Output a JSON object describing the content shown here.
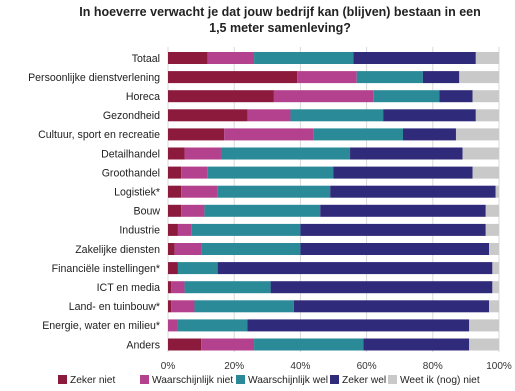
{
  "chart_data": {
    "type": "bar",
    "orientation": "horizontal",
    "stacked": true,
    "title_lines": [
      "In hoeverre verwacht je dat jouw bedrijf kan (blijven) bestaan in een",
      "1,5 meter samenleving?"
    ],
    "categories": [
      "Totaal",
      "Persoonlijke dienstverlening",
      "Horeca",
      "Gezondheid",
      "Cultuur, sport en recreatie",
      "Detailhandel",
      "Groothandel",
      "Logistiek*",
      "Bouw",
      "Industrie",
      "Zakelijke diensten",
      "Financiële instellingen*",
      "ICT en media",
      "Land- en tuinbouw*",
      "Energie, water en milieu*",
      "Anders"
    ],
    "series": [
      {
        "name": "Zeker niet",
        "color": "#8b1a3c",
        "values": [
          12,
          39,
          32,
          24,
          17,
          5,
          4,
          4,
          4,
          3,
          2,
          3,
          1,
          1,
          0,
          10
        ]
      },
      {
        "name": "Waarschijnlijk niet",
        "color": "#b4418e",
        "values": [
          14,
          18,
          30,
          13,
          27,
          11,
          8,
          11,
          7,
          4,
          8,
          0,
          4,
          7,
          3,
          16
        ]
      },
      {
        "name": "Waarschijnlijk wel",
        "color": "#2a8a97",
        "values": [
          30,
          20,
          20,
          28,
          27,
          39,
          38,
          34,
          35,
          33,
          30,
          12,
          26,
          30,
          21,
          33
        ]
      },
      {
        "name": "Zeker wel",
        "color": "#302a7a",
        "values": [
          37,
          11,
          10,
          28,
          16,
          34,
          42,
          50,
          50,
          56,
          57,
          83,
          67,
          59,
          67,
          32
        ]
      },
      {
        "name": "Weet ik (nog) niet",
        "color": "#c9c9c9",
        "values": [
          7,
          12,
          8,
          7,
          13,
          11,
          8,
          1,
          4,
          4,
          3,
          2,
          2,
          3,
          9,
          9
        ]
      }
    ],
    "x_ticks": [
      "0%",
      "20%",
      "40%",
      "60%",
      "80%",
      "100%"
    ],
    "xlim": [
      0,
      100
    ],
    "grid": true,
    "legend_position": "bottom"
  }
}
